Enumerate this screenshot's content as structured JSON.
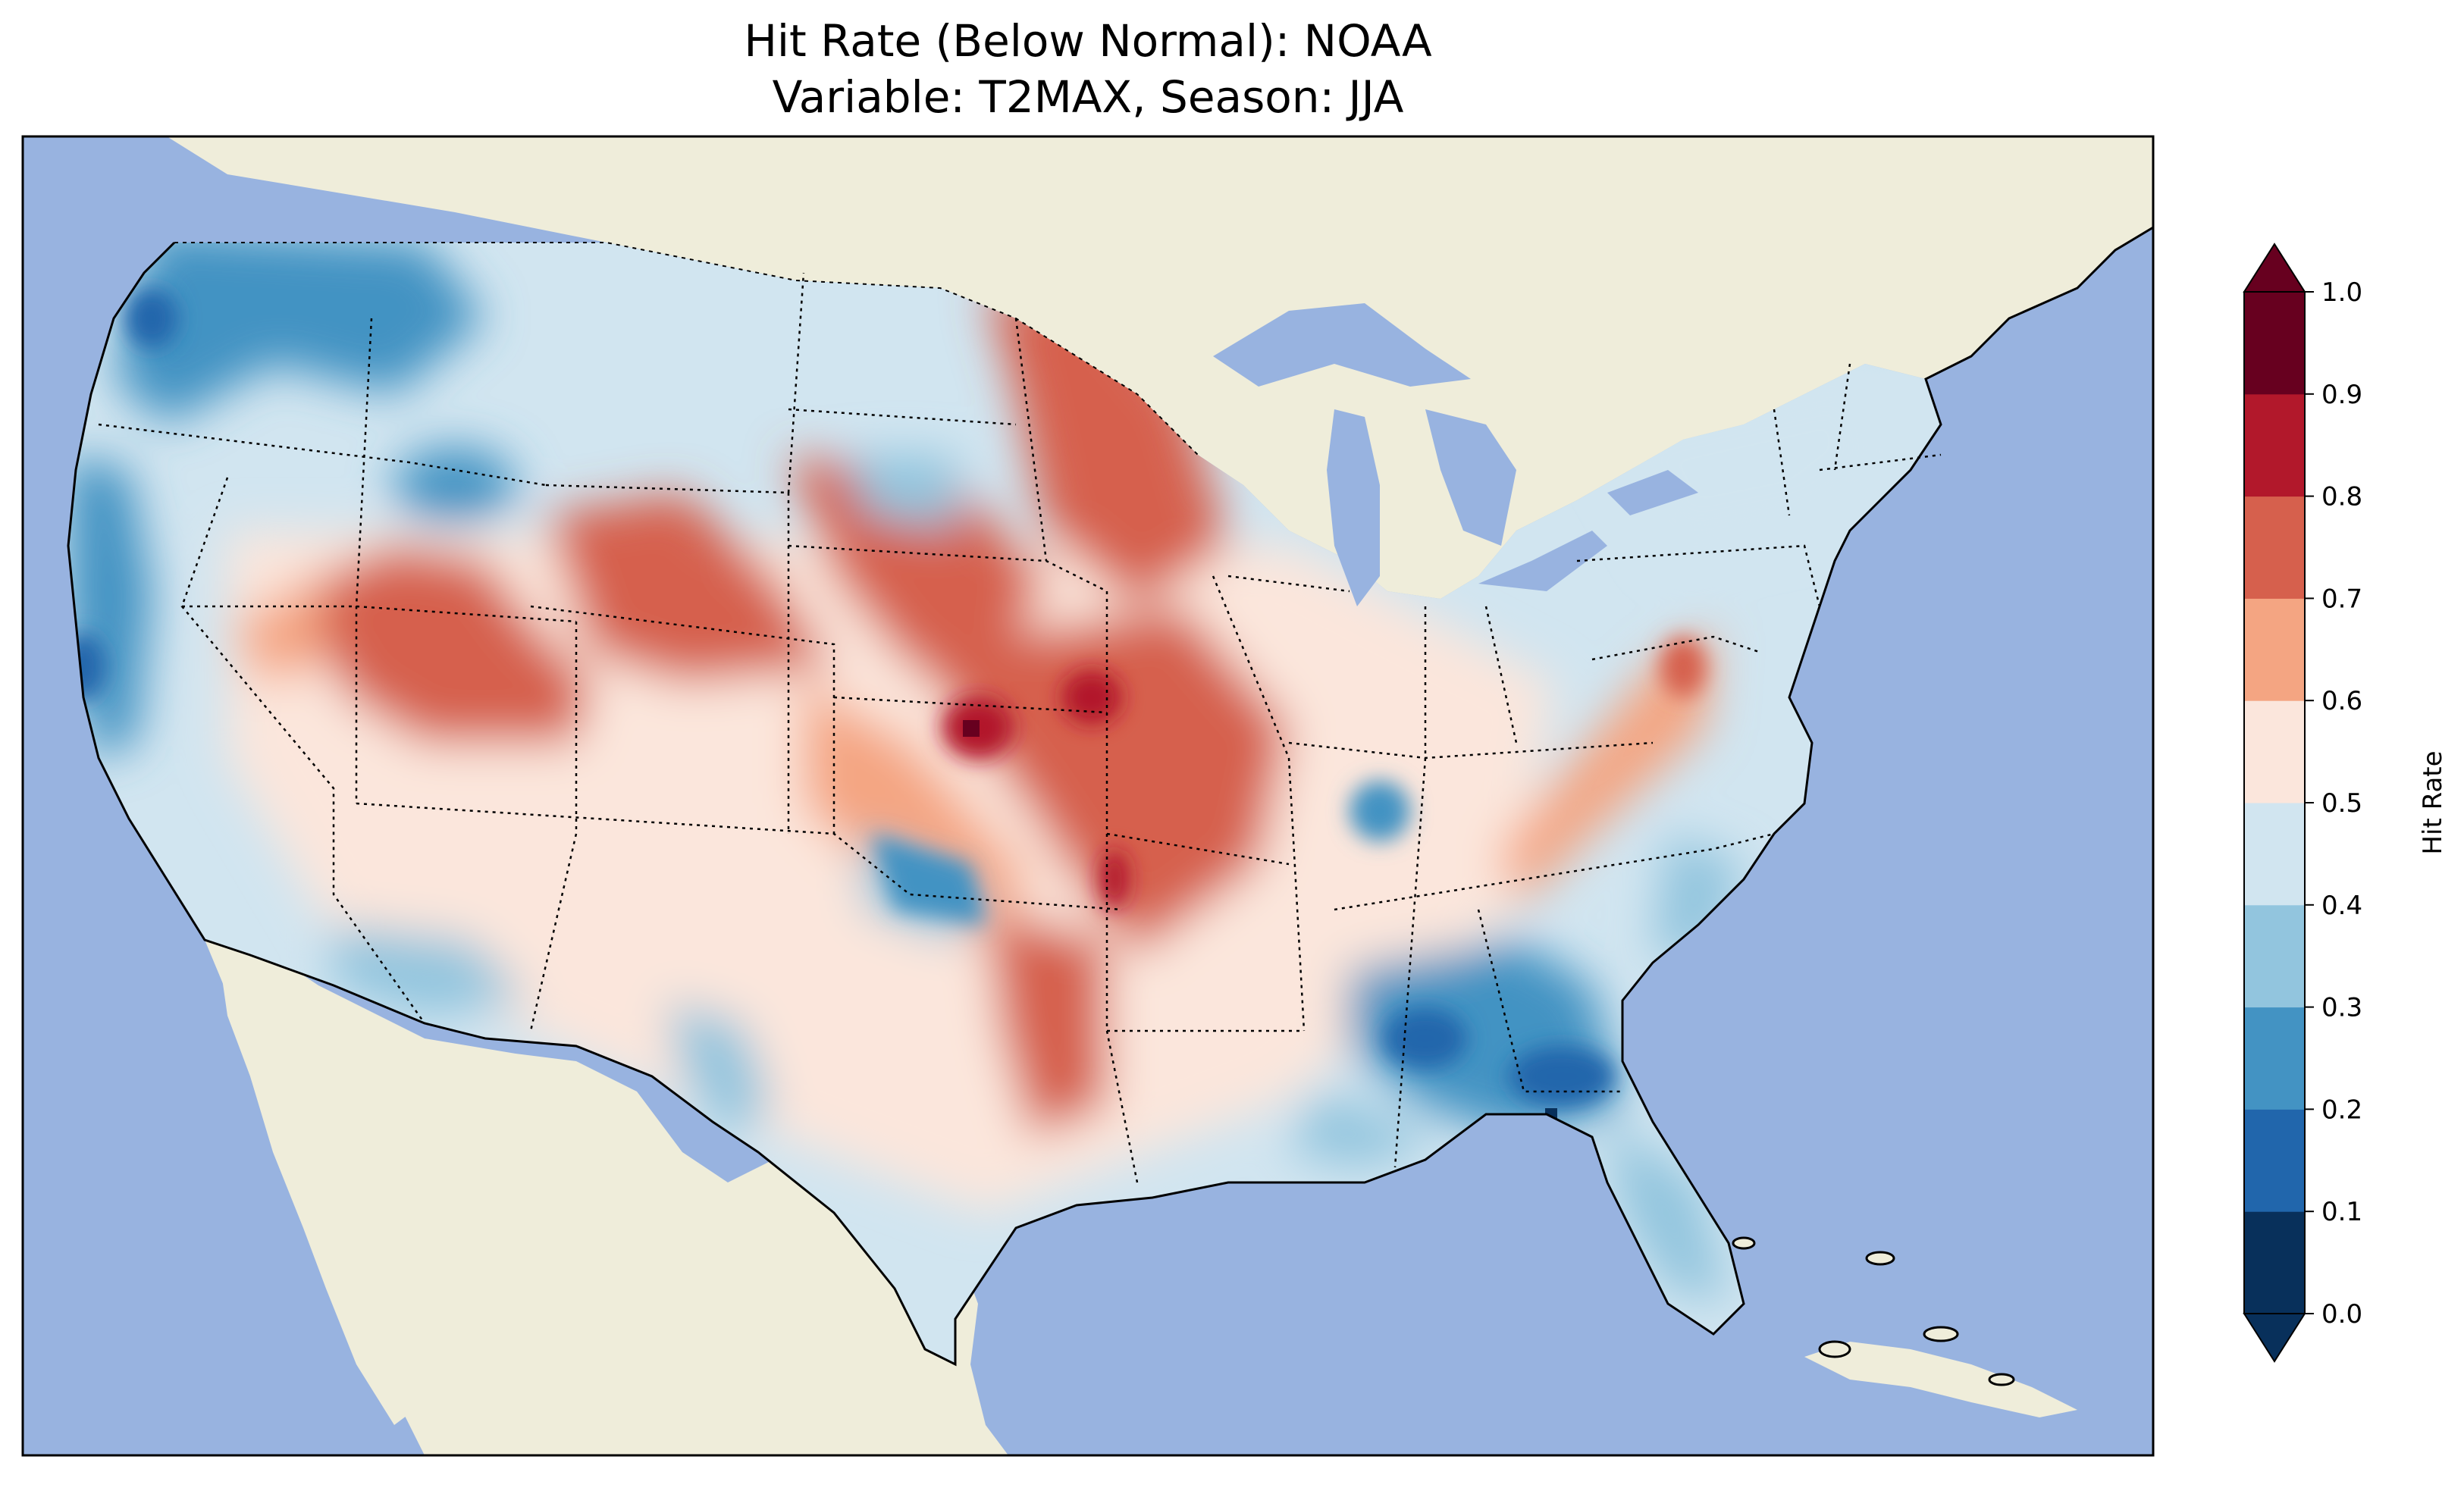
{
  "title": {
    "line1": "Hit Rate (Below Normal): NOAA",
    "line2": "Variable: T2MAX, Season: JJA"
  },
  "colors": {
    "ocean": "#98b3e0",
    "land": "#efedda",
    "level_colors": [
      "#08305b",
      "#2166ac",
      "#4393c3",
      "#92c5de",
      "#d1e5f0",
      "#fbe6dc",
      "#f4a582",
      "#d6604d",
      "#b2182b",
      "#67001f"
    ]
  },
  "map_data": {
    "type": "gridded-map",
    "region": "Contiguous United States",
    "colorbar": {
      "label": "Hit Rate",
      "ticks": [
        "0.0",
        "0.1",
        "0.2",
        "0.3",
        "0.4",
        "0.5",
        "0.6",
        "0.7",
        "0.8",
        "0.9",
        "1.0"
      ],
      "extend": "both"
    },
    "regions": [
      {
        "name": "Pacific Northwest coast",
        "value": 0.25
      },
      {
        "name": "California coast",
        "value": 0.25
      },
      {
        "name": "Great Basin",
        "value": 0.75
      },
      {
        "name": "Wyoming/Colorado",
        "value": 0.75
      },
      {
        "name": "Kansas",
        "value": 0.85
      },
      {
        "name": "Minnesota",
        "value": 0.75
      },
      {
        "name": "Missouri/Iowa",
        "value": 0.75
      },
      {
        "name": "Southwest",
        "value": 0.55
      },
      {
        "name": "Texas",
        "value": 0.55
      },
      {
        "name": "Georgia/Alabama",
        "value": 0.25
      },
      {
        "name": "Florida",
        "value": 0.35
      },
      {
        "name": "Northeast",
        "value": 0.45
      },
      {
        "name": "Virginia",
        "value": 0.65
      }
    ]
  }
}
